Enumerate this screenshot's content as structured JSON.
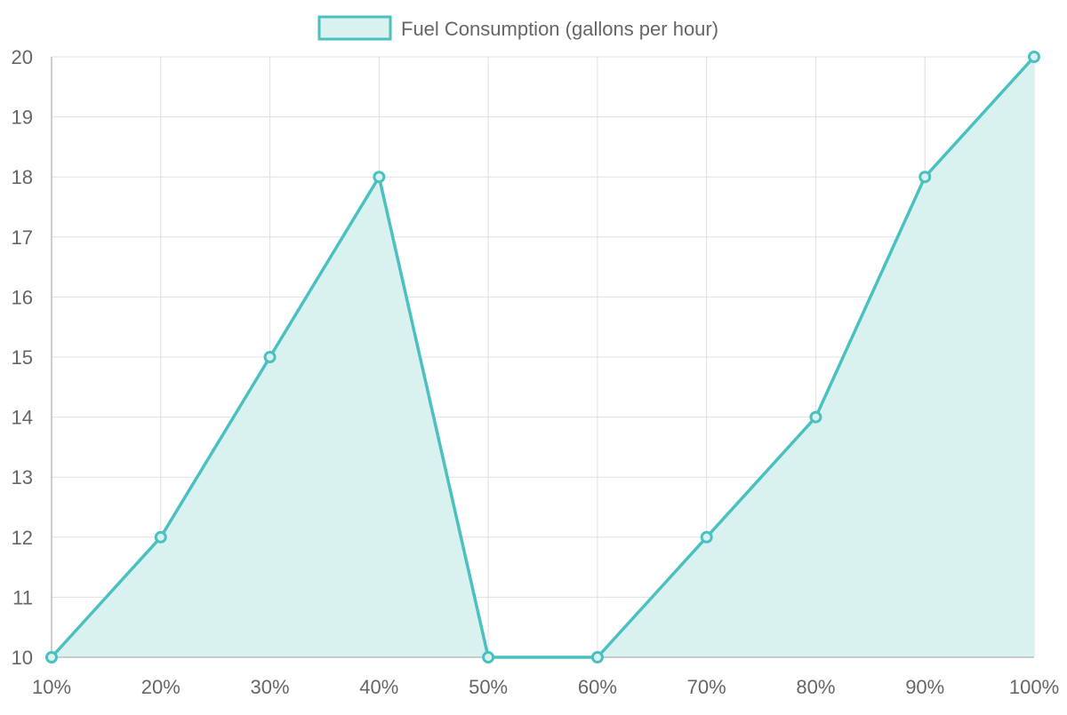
{
  "chart_data": {
    "type": "area",
    "categories": [
      "10%",
      "20%",
      "30%",
      "40%",
      "50%",
      "60%",
      "70%",
      "80%",
      "90%",
      "100%"
    ],
    "series": [
      {
        "name": "Fuel Consumption (gallons per hour)",
        "values": [
          10,
          12,
          15,
          18,
          10,
          10,
          12,
          14,
          18,
          20
        ]
      }
    ],
    "ylim": [
      10,
      20
    ],
    "yticks": [
      10,
      11,
      12,
      13,
      14,
      15,
      16,
      17,
      18,
      19,
      20
    ],
    "grid": true,
    "legend_position": "top",
    "colors": {
      "line": "#4bc0c0",
      "fill": "#d9f1ef",
      "grid": "#e0e0e0",
      "axis": "#bdbdbd",
      "text": "#666666"
    }
  }
}
